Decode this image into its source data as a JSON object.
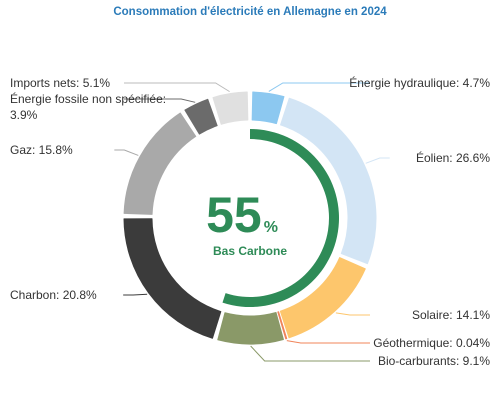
{
  "chart_data": {
    "type": "donut",
    "title": "Consommation d'électricité en Allemagne en 2024",
    "values": [
      4.7,
      26.6,
      14.1,
      0.04,
      9.1,
      20.8,
      15.8,
      3.9,
      5.1
    ],
    "value_labels": [
      "Énergie hydraulique: 4.7%",
      "Éolien: 26.6%",
      "Solaire: 14.1%",
      "Géothermique: 0.04%",
      "Bio-carburants: 9.1%",
      "Charbon: 20.8%",
      "Gaz: 15.8%",
      "Énergie fossile non spécifiée: 3.9%",
      "Imports nets: 5.1%"
    ],
    "colors": [
      "#8cc8f0",
      "#d3e5f5",
      "#fdc66c",
      "#f0845a",
      "#8a9968",
      "#3b3b3b",
      "#a9a9a9",
      "#6b6b6b",
      "#e0e0e0"
    ],
    "center": {
      "value": 55,
      "unit": "%",
      "label": "Bas Carbone",
      "color": "#2e8b57"
    }
  }
}
